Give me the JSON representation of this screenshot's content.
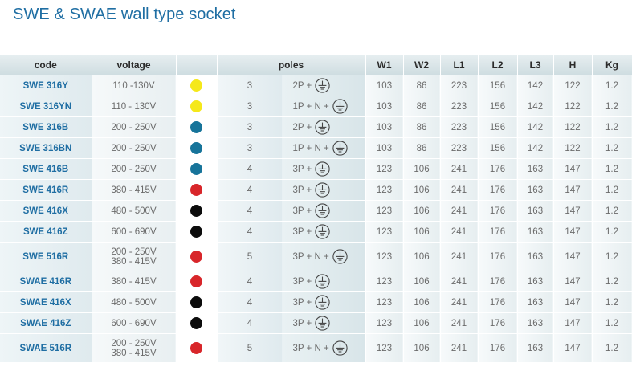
{
  "title": "SWE & SWAE wall type socket",
  "headers": {
    "code": "code",
    "voltage": "voltage",
    "poles": "poles",
    "w1": "W1",
    "w2": "W2",
    "l1": "L1",
    "l2": "L2",
    "l3": "L3",
    "h": "H",
    "kg": "Kg"
  },
  "colors": {
    "yellow": "#f5e81a",
    "blue": "#17749a",
    "red": "#d8262a",
    "black": "#0c0c0c"
  },
  "rows": [
    {
      "code": "SWE 316Y",
      "voltage": "110 -130V",
      "voltage2": "",
      "color": "yellow",
      "n": "3",
      "poles": "2P +",
      "w1": "103",
      "w2": "86",
      "l1": "223",
      "l2": "156",
      "l3": "142",
      "h": "122",
      "kg": "1.2"
    },
    {
      "code": "SWE 316YN",
      "voltage": "110 - 130V",
      "voltage2": "",
      "color": "yellow",
      "n": "3",
      "poles": "1P + N +",
      "w1": "103",
      "w2": "86",
      "l1": "223",
      "l2": "156",
      "l3": "142",
      "h": "122",
      "kg": "1.2"
    },
    {
      "code": "SWE 316B",
      "voltage": "200 - 250V",
      "voltage2": "",
      "color": "blue",
      "n": "3",
      "poles": "2P +",
      "w1": "103",
      "w2": "86",
      "l1": "223",
      "l2": "156",
      "l3": "142",
      "h": "122",
      "kg": "1.2"
    },
    {
      "code": "SWE 316BN",
      "voltage": "200 - 250V",
      "voltage2": "",
      "color": "blue",
      "n": "3",
      "poles": "1P + N +",
      "w1": "103",
      "w2": "86",
      "l1": "223",
      "l2": "156",
      "l3": "142",
      "h": "122",
      "kg": "1.2"
    },
    {
      "code": "SWE 416B",
      "voltage": "200 - 250V",
      "voltage2": "",
      "color": "blue",
      "n": "4",
      "poles": "3P +",
      "w1": "123",
      "w2": "106",
      "l1": "241",
      "l2": "176",
      "l3": "163",
      "h": "147",
      "kg": "1.2"
    },
    {
      "code": "SWE 416R",
      "voltage": "380 - 415V",
      "voltage2": "",
      "color": "red",
      "n": "4",
      "poles": "3P +",
      "w1": "123",
      "w2": "106",
      "l1": "241",
      "l2": "176",
      "l3": "163",
      "h": "147",
      "kg": "1.2"
    },
    {
      "code": "SWE 416X",
      "voltage": "480 - 500V",
      "voltage2": "",
      "color": "black",
      "n": "4",
      "poles": "3P +",
      "w1": "123",
      "w2": "106",
      "l1": "241",
      "l2": "176",
      "l3": "163",
      "h": "147",
      "kg": "1.2"
    },
    {
      "code": "SWE 416Z",
      "voltage": "600 - 690V",
      "voltage2": "",
      "color": "black",
      "n": "4",
      "poles": "3P +",
      "w1": "123",
      "w2": "106",
      "l1": "241",
      "l2": "176",
      "l3": "163",
      "h": "147",
      "kg": "1.2"
    },
    {
      "code": "SWE 516R",
      "voltage": "200 - 250V",
      "voltage2": "380 - 415V",
      "color": "red",
      "n": "5",
      "poles": "3P + N +",
      "w1": "123",
      "w2": "106",
      "l1": "241",
      "l2": "176",
      "l3": "163",
      "h": "147",
      "kg": "1.2"
    },
    {
      "code": "SWAE 416R",
      "voltage": "380 - 415V",
      "voltage2": "",
      "color": "red",
      "n": "4",
      "poles": "3P +",
      "w1": "123",
      "w2": "106",
      "l1": "241",
      "l2": "176",
      "l3": "163",
      "h": "147",
      "kg": "1.2"
    },
    {
      "code": "SWAE 416X",
      "voltage": "480 - 500V",
      "voltage2": "",
      "color": "black",
      "n": "4",
      "poles": "3P +",
      "w1": "123",
      "w2": "106",
      "l1": "241",
      "l2": "176",
      "l3": "163",
      "h": "147",
      "kg": "1.2"
    },
    {
      "code": "SWAE 416Z",
      "voltage": "600 - 690V",
      "voltage2": "",
      "color": "black",
      "n": "4",
      "poles": "3P +",
      "w1": "123",
      "w2": "106",
      "l1": "241",
      "l2": "176",
      "l3": "163",
      "h": "147",
      "kg": "1.2"
    },
    {
      "code": "SWAE 516R",
      "voltage": "200 - 250V",
      "voltage2": "380 - 415V",
      "color": "red",
      "n": "5",
      "poles": "3P + N +",
      "w1": "123",
      "w2": "106",
      "l1": "241",
      "l2": "176",
      "l3": "163",
      "h": "147",
      "kg": "1.2"
    }
  ]
}
